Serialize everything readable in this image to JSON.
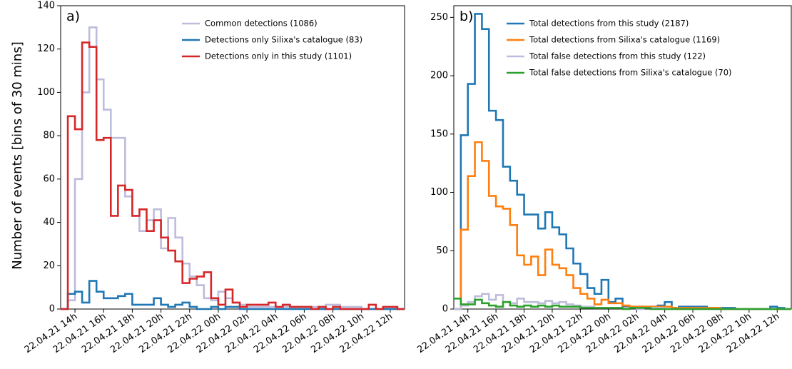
{
  "ylabel": "Number of events [bins of 30 mins]",
  "x_tick_labels": [
    "22.04.21 14h",
    "22.04.21 16h",
    "22.04.21 18h",
    "22.04.21 20h",
    "22.04.21 22h",
    "22.04.22 00h",
    "22.04.22 02h",
    "22.04.22 04h",
    "22.04.22 06h",
    "22.04.22 08h",
    "22.04.22 10h",
    "22.04.22 12h"
  ],
  "chart_data": [
    {
      "panel": "a)",
      "type": "line",
      "drawstyle": "step-histogram",
      "ylim": [
        0,
        140
      ],
      "yticks": [
        0,
        20,
        40,
        60,
        80,
        100,
        120,
        140
      ],
      "xticks": [
        "22.04.21 14h",
        "22.04.21 16h",
        "22.04.21 18h",
        "22.04.21 20h",
        "22.04.21 22h",
        "22.04.22 00h",
        "22.04.22 02h",
        "22.04.22 04h",
        "22.04.22 06h",
        "22.04.22 08h",
        "22.04.22 10h",
        "22.04.22 12h"
      ],
      "bin_hours": 0.5,
      "x_start": "22.04.21 13h",
      "legend_position": "top-right",
      "series": [
        {
          "name": "Common detections (1086)",
          "color": "#bcbcdc",
          "values": [
            0,
            4,
            60,
            100,
            130,
            106,
            92,
            79,
            79,
            52,
            43,
            36,
            41,
            46,
            28,
            42,
            33,
            21,
            15,
            11,
            5,
            4,
            8,
            5,
            3,
            2,
            1,
            1,
            1,
            1,
            1,
            1,
            1,
            1,
            1,
            1,
            1,
            2,
            2,
            1,
            1,
            1,
            0,
            0,
            0,
            0,
            0,
            0
          ]
        },
        {
          "name": "Detections only Silixa's catalogue (83)",
          "color": "#1f77b4",
          "values": [
            0,
            7,
            8,
            3,
            13,
            8,
            5,
            5,
            6,
            7,
            2,
            2,
            2,
            5,
            2,
            1,
            2,
            3,
            1,
            0,
            0,
            1,
            0,
            1,
            1,
            0,
            0,
            0,
            0,
            0,
            0,
            0,
            0,
            0,
            0,
            0,
            0,
            0,
            0,
            0,
            0,
            0,
            0,
            0,
            0,
            0,
            0,
            0
          ]
        },
        {
          "name": "Detections only in this study (1101)",
          "color": "#d62728",
          "values": [
            0,
            89,
            83,
            123,
            121,
            78,
            79,
            43,
            57,
            55,
            43,
            46,
            36,
            41,
            33,
            27,
            22,
            12,
            14,
            15,
            17,
            5,
            2,
            9,
            3,
            1,
            2,
            2,
            2,
            3,
            1,
            2,
            1,
            1,
            1,
            0,
            1,
            0,
            1,
            0,
            0,
            0,
            0,
            2,
            0,
            1,
            1,
            0
          ]
        }
      ]
    },
    {
      "panel": "b)",
      "type": "line",
      "drawstyle": "step-histogram",
      "ylim": [
        0,
        260
      ],
      "yticks": [
        0,
        50,
        100,
        150,
        200,
        250
      ],
      "xticks": [
        "22.04.21 14h",
        "22.04.21 16h",
        "22.04.21 18h",
        "22.04.21 20h",
        "22.04.21 22h",
        "22.04.22 00h",
        "22.04.22 02h",
        "22.04.22 04h",
        "22.04.22 06h",
        "22.04.22 08h",
        "22.04.22 10h",
        "22.04.22 12h"
      ],
      "bin_hours": 0.5,
      "x_start": "22.04.21 13h",
      "legend_position": "top-right",
      "series": [
        {
          "name": "Total detections from this study (2187)",
          "color": "#1f77b4",
          "values": [
            0,
            149,
            193,
            253,
            240,
            170,
            162,
            122,
            110,
            98,
            81,
            81,
            69,
            83,
            70,
            64,
            52,
            39,
            30,
            18,
            13,
            25,
            6,
            9,
            2,
            2,
            2,
            2,
            2,
            3,
            6,
            1,
            2,
            2,
            2,
            2,
            1,
            1,
            1,
            1,
            0,
            0,
            0,
            0,
            0,
            2,
            1,
            0
          ]
        },
        {
          "name": "Total detections from Silixa's catalogue (1169)",
          "color": "#ff7f0e",
          "values": [
            0,
            68,
            114,
            143,
            127,
            97,
            88,
            86,
            72,
            46,
            38,
            45,
            29,
            51,
            38,
            35,
            29,
            18,
            13,
            9,
            4,
            8,
            5,
            5,
            3,
            2,
            2,
            2,
            2,
            2,
            2,
            1,
            1,
            1,
            1,
            1,
            1,
            1,
            0,
            0,
            0,
            0,
            0,
            0,
            0,
            0,
            0,
            0
          ]
        },
        {
          "name": "Total false detections from this study (122)",
          "color": "#bcbcdc",
          "values": [
            0,
            3,
            6,
            11,
            13,
            8,
            12,
            6,
            5,
            9,
            6,
            6,
            5,
            7,
            5,
            6,
            4,
            3,
            2,
            2,
            1,
            1,
            1,
            1,
            1,
            1,
            0,
            1,
            1,
            1,
            0,
            0,
            0,
            0,
            0,
            0,
            0,
            0,
            0,
            0,
            0,
            0,
            0,
            0,
            0,
            0,
            0,
            0
          ]
        },
        {
          "name": "Total false detections from Silixa's catalogue (70)",
          "color": "#2ca02c",
          "values": [
            9,
            4,
            4,
            8,
            5,
            3,
            2,
            6,
            3,
            2,
            3,
            2,
            3,
            2,
            3,
            2,
            2,
            2,
            1,
            1,
            1,
            1,
            1,
            1,
            0,
            1,
            1,
            1,
            0,
            0,
            0,
            0,
            0,
            0,
            0,
            0,
            0,
            0,
            0,
            0,
            0,
            0,
            0,
            0,
            0,
            0,
            0,
            0
          ]
        }
      ]
    }
  ]
}
